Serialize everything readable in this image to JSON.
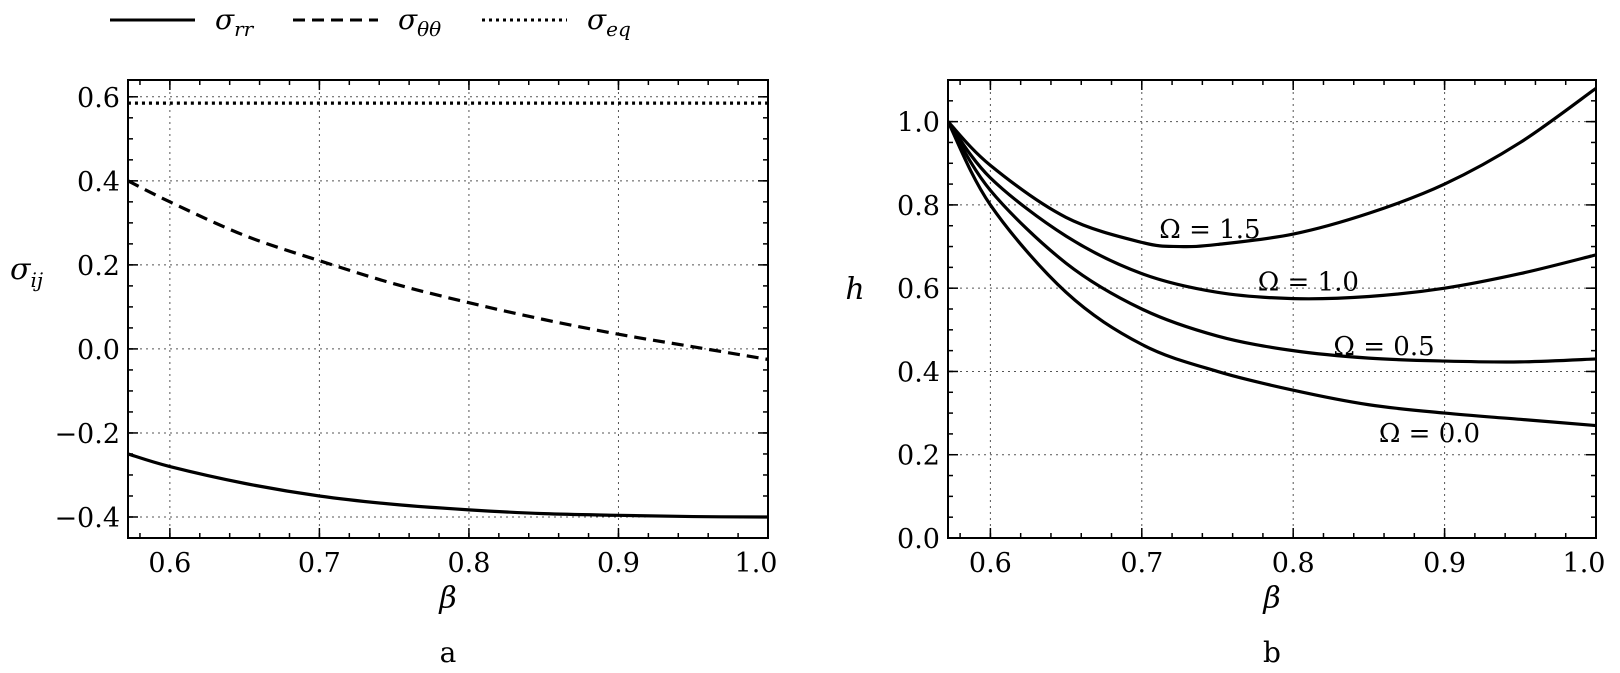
{
  "legend": [
    {
      "key": "sigma_rr",
      "symbol": "σ",
      "subscript": "rr",
      "style": "solid"
    },
    {
      "key": "sigma_tt",
      "symbol": "σ",
      "subscript": "θθ",
      "style": "dashed"
    },
    {
      "key": "sigma_eq",
      "symbol": "σ",
      "subscript": "eq",
      "style": "dotted"
    }
  ],
  "chart_data": [
    {
      "id": "a",
      "type": "line",
      "panel_label": "a",
      "xlabel": "β",
      "ylabel_symbol": "σ",
      "ylabel_subscript": "ij",
      "xlim": [
        0.572,
        1.0
      ],
      "ylim": [
        -0.45,
        0.64
      ],
      "xticks": [
        0.6,
        0.7,
        0.8,
        0.9,
        1.0
      ],
      "xtick_labels": [
        "0.6",
        "0.7",
        "0.8",
        "0.9",
        "1.0"
      ],
      "yticks": [
        -0.4,
        -0.2,
        0.0,
        0.2,
        0.4,
        0.6
      ],
      "ytick_labels": [
        "−0.4",
        "−0.2",
        "0.0",
        "0.2",
        "0.4",
        "0.6"
      ],
      "grid": true,
      "series": [
        {
          "name": "σrr",
          "style": "solid",
          "x": [
            0.572,
            0.6,
            0.65,
            0.7,
            0.75,
            0.8,
            0.85,
            0.9,
            0.95,
            1.0
          ],
          "y": [
            -0.25,
            -0.28,
            -0.32,
            -0.35,
            -0.37,
            -0.383,
            -0.392,
            -0.396,
            -0.399,
            -0.4
          ]
        },
        {
          "name": "σθθ",
          "style": "dashed",
          "x": [
            0.572,
            0.6,
            0.65,
            0.7,
            0.75,
            0.8,
            0.85,
            0.9,
            0.95,
            1.0
          ],
          "y": [
            0.4,
            0.35,
            0.27,
            0.21,
            0.155,
            0.11,
            0.07,
            0.035,
            0.005,
            -0.025
          ]
        },
        {
          "name": "σeq",
          "style": "dotted",
          "x": [
            0.572,
            1.0
          ],
          "y": [
            0.585,
            0.585
          ]
        }
      ]
    },
    {
      "id": "b",
      "type": "line",
      "panel_label": "b",
      "xlabel": "β",
      "ylabel": "h",
      "xlim": [
        0.572,
        1.0
      ],
      "ylim": [
        0.0,
        1.1
      ],
      "xticks": [
        0.6,
        0.7,
        0.8,
        0.9,
        1.0
      ],
      "xtick_labels": [
        "0.6",
        "0.7",
        "0.8",
        "0.9",
        "1.0"
      ],
      "yticks": [
        0.0,
        0.2,
        0.4,
        0.6,
        0.8,
        1.0
      ],
      "ytick_labels": [
        "0.0",
        "0.2",
        "0.4",
        "0.6",
        "0.8",
        "1.0"
      ],
      "grid": true,
      "series": [
        {
          "name": "Ω = 0.0",
          "label_at": [
            0.89,
            0.23
          ],
          "x": [
            0.572,
            0.6,
            0.65,
            0.7,
            0.75,
            0.8,
            0.85,
            0.9,
            0.95,
            1.0
          ],
          "y": [
            1.0,
            0.8,
            0.59,
            0.465,
            0.4,
            0.355,
            0.32,
            0.3,
            0.285,
            0.27
          ]
        },
        {
          "name": "Ω = 0.5",
          "label_at": [
            0.86,
            0.44
          ],
          "x": [
            0.572,
            0.6,
            0.65,
            0.7,
            0.75,
            0.8,
            0.85,
            0.9,
            0.95,
            1.0
          ],
          "y": [
            1.0,
            0.835,
            0.66,
            0.55,
            0.485,
            0.45,
            0.432,
            0.425,
            0.423,
            0.43
          ]
        },
        {
          "name": "Ω = 1.0",
          "label_at": [
            0.81,
            0.595
          ],
          "x": [
            0.572,
            0.6,
            0.65,
            0.7,
            0.75,
            0.8,
            0.85,
            0.9,
            0.95,
            1.0
          ],
          "y": [
            1.0,
            0.865,
            0.725,
            0.635,
            0.59,
            0.575,
            0.58,
            0.6,
            0.635,
            0.68
          ]
        },
        {
          "name": "Ω = 1.5",
          "label_at": [
            0.745,
            0.72
          ],
          "x": [
            0.572,
            0.6,
            0.65,
            0.7,
            0.725,
            0.75,
            0.8,
            0.85,
            0.9,
            0.95,
            1.0
          ],
          "y": [
            1.0,
            0.895,
            0.77,
            0.71,
            0.7,
            0.705,
            0.73,
            0.78,
            0.85,
            0.95,
            1.08
          ]
        }
      ]
    }
  ]
}
